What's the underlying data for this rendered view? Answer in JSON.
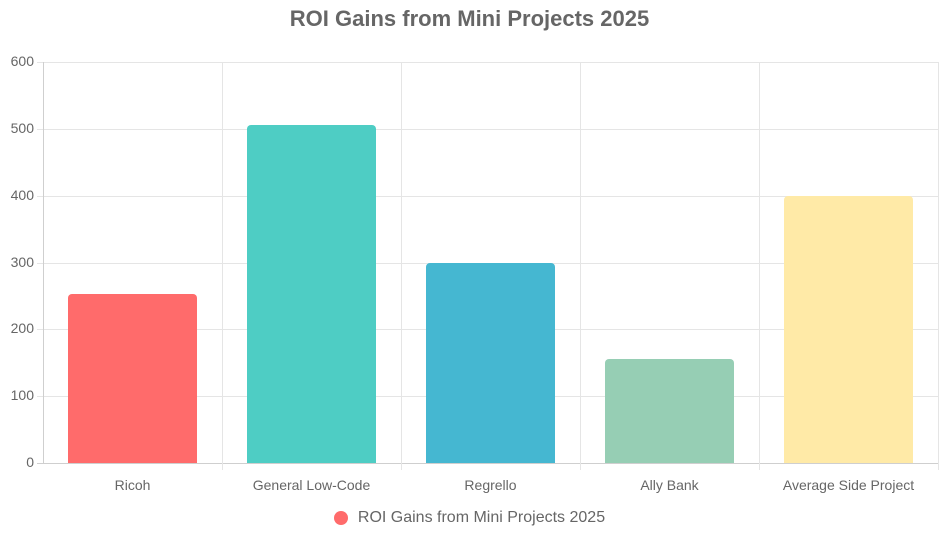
{
  "chart_data": {
    "type": "bar",
    "title": "ROI Gains from Mini Projects 2025",
    "categories": [
      "Ricoh",
      "General Low-Code",
      "Regrello",
      "Ally Bank",
      "Average Side Project"
    ],
    "series": [
      {
        "name": "ROI Gains from Mini Projects 2025",
        "values": [
          253,
          505,
          300,
          155,
          400
        ],
        "colors": [
          "#ff6b6b",
          "#4ecdc4",
          "#45b7d1",
          "#96ceb4",
          "#ffeaa7"
        ]
      }
    ],
    "xlabel": "",
    "ylabel": "",
    "ylim": [
      0,
      600
    ],
    "yticks": [
      0,
      100,
      200,
      300,
      400,
      500,
      600
    ],
    "grid": true,
    "legend_position": "bottom"
  },
  "legend": {
    "label": "ROI Gains from Mini Projects 2025",
    "color": "#ff6b6b"
  }
}
